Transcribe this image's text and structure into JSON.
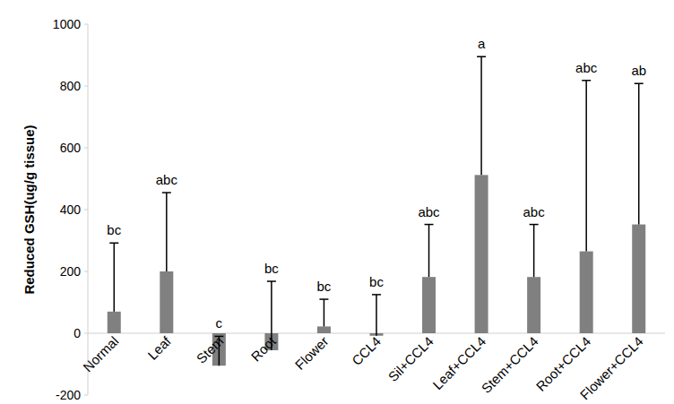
{
  "chart_data": {
    "type": "bar",
    "y_label": "Reduced GSH(ug/g tissue)",
    "categories": [
      "Normal",
      "Leaf",
      "Stem",
      "Root",
      "Flower",
      "CCL4",
      "Sil+CCL4",
      "Leaf+CCL4",
      "Stem+CCL4",
      "Root+CCL4",
      "Flower+CCL4"
    ],
    "values": [
      70,
      200,
      -105,
      -55,
      22,
      -8,
      182,
      512,
      182,
      265,
      352
    ],
    "errors": [
      222,
      255,
      95,
      223,
      88,
      133,
      170,
      383,
      170,
      553,
      456
    ],
    "letters": [
      "bc",
      "abc",
      "c",
      "bc",
      "bc",
      "bc",
      "abc",
      "a",
      "abc",
      "abc",
      "ab"
    ],
    "color": "#808080",
    "ylim": [
      -200,
      1000
    ],
    "yticks": [
      -200,
      0,
      200,
      400,
      600,
      800,
      1000
    ],
    "grid": false
  }
}
